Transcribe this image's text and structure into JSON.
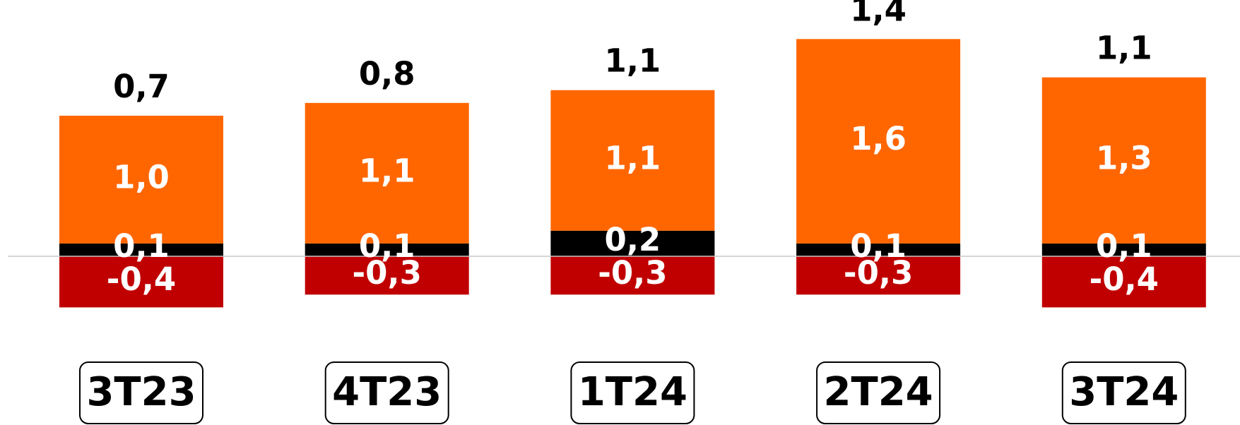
{
  "chart_data": {
    "type": "stacked-bar",
    "categories": [
      "3T23",
      "4T23",
      "1T24",
      "2T24",
      "3T24"
    ],
    "series": [
      {
        "color": "#c00000",
        "values": [
          -0.4,
          -0.3,
          -0.3,
          -0.3,
          -0.4
        ],
        "value_labels": [
          "-0,4",
          "-0,3",
          "-0,3",
          "-0,3",
          "-0,4"
        ]
      },
      {
        "color": "#000000",
        "values": [
          0.1,
          0.1,
          0.2,
          0.1,
          0.1
        ],
        "value_labels": [
          "0,1",
          "0,1",
          "0,2",
          "0,1",
          "0,1"
        ]
      },
      {
        "color": "#ff6600",
        "values": [
          1.0,
          1.1,
          1.1,
          1.6,
          1.3
        ],
        "value_labels": [
          "1,0",
          "1,1",
          "1,1",
          "1,6",
          "1,3"
        ]
      }
    ],
    "totals": {
      "values": [
        0.7,
        0.8,
        1.1,
        1.4,
        1.1
      ],
      "value_labels": [
        "0,7",
        "0,8",
        "1,1",
        "1,4",
        "1,1"
      ]
    }
  }
}
